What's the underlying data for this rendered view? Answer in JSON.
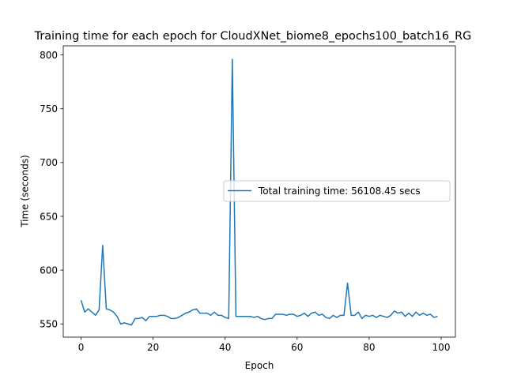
{
  "chart_data": {
    "type": "line",
    "title": "Training time for each epoch for CloudXNet_biome8_epochs100_batch16_RG",
    "xlabel": "Epoch",
    "ylabel": "Time (seconds)",
    "xlim": [
      -4.95,
      103.95
    ],
    "ylim": [
      537.7,
      808.5
    ],
    "xticks": [
      0,
      20,
      40,
      60,
      80,
      100
    ],
    "yticks": [
      550,
      600,
      650,
      700,
      750,
      800
    ],
    "grid": false,
    "legend_position": "center-right",
    "series": [
      {
        "name": "Total training time: 56108.45 secs",
        "color": "#1f77b4",
        "x": [
          0,
          1,
          2,
          3,
          4,
          5,
          6,
          7,
          8,
          9,
          10,
          11,
          12,
          13,
          14,
          15,
          16,
          17,
          18,
          19,
          20,
          21,
          22,
          23,
          24,
          25,
          26,
          27,
          28,
          29,
          30,
          31,
          32,
          33,
          34,
          35,
          36,
          37,
          38,
          39,
          40,
          41,
          42,
          43,
          44,
          45,
          46,
          47,
          48,
          49,
          50,
          51,
          52,
          53,
          54,
          55,
          56,
          57,
          58,
          59,
          60,
          61,
          62,
          63,
          64,
          65,
          66,
          67,
          68,
          69,
          70,
          71,
          72,
          73,
          74,
          75,
          76,
          77,
          78,
          79,
          80,
          81,
          82,
          83,
          84,
          85,
          86,
          87,
          88,
          89,
          90,
          91,
          92,
          93,
          94,
          95,
          96,
          97,
          98,
          99
        ],
        "values": [
          572,
          561,
          564,
          561,
          558,
          563,
          623,
          564,
          563,
          561,
          557,
          550,
          551,
          550,
          549,
          555,
          555,
          556,
          553,
          557,
          557,
          557,
          558,
          558,
          557,
          555,
          555,
          556,
          558,
          560,
          561,
          563,
          564,
          560,
          560,
          560,
          558,
          561,
          558,
          558,
          556,
          555,
          796,
          557,
          557,
          557,
          557,
          557,
          556,
          557,
          555,
          554,
          555,
          555,
          559,
          559,
          559,
          558,
          559,
          559,
          557,
          558,
          560,
          557,
          560,
          561,
          558,
          559,
          556,
          555,
          558,
          556,
          558,
          558,
          588,
          558,
          558,
          561,
          555,
          558,
          557,
          558,
          556,
          558,
          557,
          556,
          558,
          562,
          560,
          561,
          557,
          560,
          557,
          561,
          558,
          560,
          558,
          559,
          556,
          557
        ]
      }
    ]
  }
}
